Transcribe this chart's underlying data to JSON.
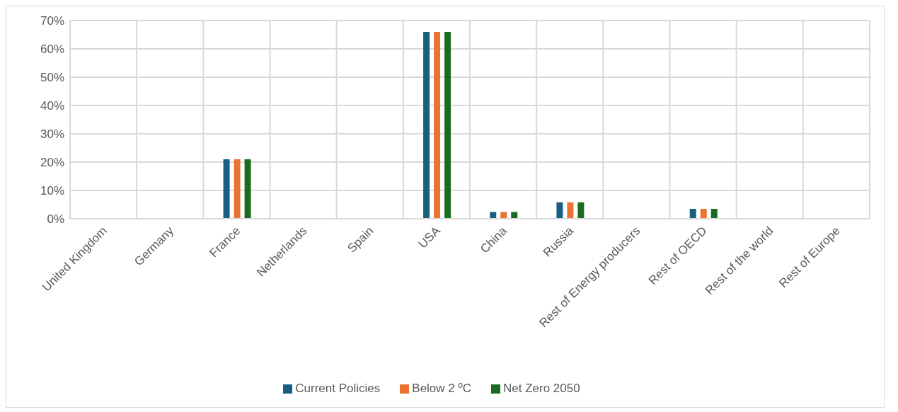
{
  "chart_data": {
    "type": "bar",
    "categories": [
      "United Kingdom",
      "Germany",
      "France",
      "Netherlands",
      "Spain",
      "USA",
      "China",
      "Russia",
      "Rest of Energy producers",
      "Rest of OECD",
      "Rest of the world",
      "Rest of Europe"
    ],
    "series": [
      {
        "name": "Current Policies",
        "color": "#1a5e82",
        "values": [
          0,
          0,
          21,
          0,
          0,
          66,
          2.4,
          5.8,
          0,
          3.5,
          0,
          0
        ]
      },
      {
        "name": "Below 2 ºC",
        "color": "#ea7331",
        "values": [
          0,
          0,
          21,
          0,
          0,
          66,
          2.4,
          5.8,
          0,
          3.5,
          0,
          0
        ]
      },
      {
        "name": "Net Zero 2050",
        "color": "#1b6b25",
        "values": [
          0,
          0,
          21,
          0,
          0,
          66,
          2.4,
          5.8,
          0,
          3.5,
          0,
          0
        ]
      }
    ],
    "ylim": [
      0,
      70
    ],
    "yticks": [
      {
        "value": 0,
        "label": "0%"
      },
      {
        "value": 10,
        "label": "10%"
      },
      {
        "value": 20,
        "label": "20%"
      },
      {
        "value": 30,
        "label": "30%"
      },
      {
        "value": 40,
        "label": "40%"
      },
      {
        "value": 50,
        "label": "50%"
      },
      {
        "value": 60,
        "label": "60%"
      },
      {
        "value": 70,
        "label": "70%"
      }
    ],
    "grid": true,
    "legend": "bottom"
  }
}
